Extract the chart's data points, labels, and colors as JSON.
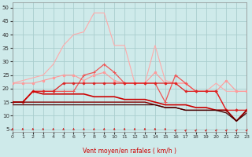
{
  "xlabel": "Vent moyen/en rafales ( km/h )",
  "xlim": [
    0,
    23
  ],
  "ylim": [
    4,
    52
  ],
  "yticks": [
    5,
    10,
    15,
    20,
    25,
    30,
    35,
    40,
    45,
    50
  ],
  "xticks": [
    0,
    1,
    2,
    3,
    4,
    5,
    6,
    7,
    8,
    9,
    10,
    11,
    12,
    13,
    14,
    15,
    16,
    17,
    18,
    19,
    20,
    21,
    22,
    23
  ],
  "bg_color": "#ceeaea",
  "grid_color": "#aacece",
  "series": [
    {
      "y": [
        22,
        23,
        24,
        25,
        29,
        36,
        40,
        41,
        48,
        48,
        36,
        36,
        22,
        22,
        36,
        23,
        22,
        22,
        19,
        19,
        22,
        19,
        19,
        19
      ],
      "color": "#ffaaaa",
      "lw": 0.8,
      "marker": null
    },
    {
      "y": [
        22,
        22,
        22,
        23,
        24,
        25,
        25,
        23,
        25,
        26,
        23,
        22,
        22,
        22,
        26,
        22,
        22,
        22,
        19,
        19,
        19,
        23,
        19,
        19
      ],
      "color": "#ff9999",
      "lw": 0.8,
      "marker": "o",
      "ms": 1.8
    },
    {
      "y": [
        15,
        15,
        19,
        19,
        19,
        19,
        19,
        25,
        26,
        29,
        26,
        22,
        22,
        22,
        22,
        15,
        25,
        22,
        19,
        19,
        19,
        12,
        12,
        12
      ],
      "color": "#ee5555",
      "lw": 0.9,
      "marker": "+",
      "ms": 3.5
    },
    {
      "y": [
        15,
        15,
        19,
        19,
        19,
        22,
        22,
        22,
        22,
        22,
        22,
        22,
        22,
        22,
        22,
        22,
        22,
        19,
        19,
        19,
        19,
        12,
        12,
        12
      ],
      "color": "#dd2222",
      "lw": 0.9,
      "marker": "D",
      "ms": 1.5
    },
    {
      "y": [
        15,
        15,
        19,
        18,
        18,
        18,
        18,
        18,
        17,
        17,
        17,
        16,
        16,
        16,
        15,
        14,
        14,
        14,
        13,
        13,
        12,
        12,
        8,
        12
      ],
      "color": "#cc0000",
      "lw": 1.2,
      "marker": null
    },
    {
      "y": [
        15,
        15,
        15,
        15,
        15,
        15,
        15,
        15,
        15,
        15,
        15,
        15,
        15,
        15,
        14,
        13,
        13,
        12,
        12,
        12,
        12,
        12,
        8,
        12
      ],
      "color": "#880000",
      "lw": 1.0,
      "marker": null
    },
    {
      "y": [
        14,
        14,
        14,
        14,
        14,
        14,
        14,
        14,
        14,
        14,
        14,
        14,
        14,
        14,
        14,
        13,
        13,
        12,
        12,
        12,
        12,
        11,
        8,
        11
      ],
      "color": "#440000",
      "lw": 0.9,
      "marker": null
    }
  ],
  "arrows": {
    "up_count": 16,
    "color": "#cc3333"
  }
}
